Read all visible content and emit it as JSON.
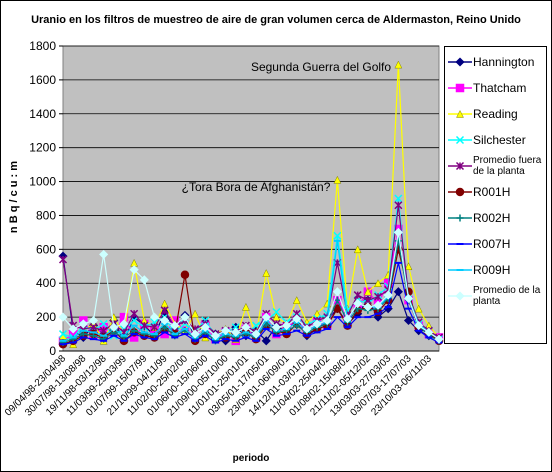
{
  "chart_data": {
    "type": "line",
    "title": "Uranio en los filtros de muestreo de aire de gran volumen cerca de Aldermaston, Reino Unido",
    "x_label": "periodo",
    "y_label": "n B q / c u : m",
    "annotations": [
      "Segunda Guerra del Golfo",
      "¿Tora Bora de Afghanistán?"
    ],
    "categories": [
      "09/04/98-23/04/98",
      null,
      "30/07/98-13/08/98",
      null,
      "19/11/98-03/12/98",
      null,
      "11/03/99-25/03/99",
      null,
      "01/07/99-15/07/99",
      null,
      "21/10/99-04/11/99",
      null,
      "11/02/00-25/02/00",
      null,
      "01/06/00-15/06/00",
      null,
      "21/09/00-05/10/00",
      null,
      "11/01/01-25/01/01",
      null,
      "03/05/01-17/05/01",
      null,
      "23/08/01-06/09/01",
      null,
      "14/12/01-03/01/02",
      null,
      "11/04/02-25/04/02",
      null,
      "01/08/02-15/08/02",
      null,
      "21/11/02-05/12/02",
      null,
      "13/03/03-27/03/03",
      null,
      "03/07/03-17/07/03",
      null,
      "23/10/03-06/11/03",
      null
    ],
    "ylim": [
      0,
      1800
    ],
    "yticks": [
      0,
      200,
      400,
      600,
      800,
      1000,
      1200,
      1400,
      1600,
      1800
    ],
    "grid": true,
    "series": [
      {
        "name": "Hannington",
        "color": "#000080",
        "marker": "diamond",
        "values": [
          560,
          120,
          80,
          150,
          100,
          180,
          60,
          200,
          150,
          90,
          230,
          130,
          210,
          80,
          170,
          100,
          60,
          140,
          90,
          120,
          60,
          150,
          110,
          200,
          90,
          130,
          180,
          250,
          160,
          220,
          300,
          200,
          250,
          350,
          180,
          120,
          90,
          70
        ]
      },
      {
        "name": "Thatcham",
        "color": "#ff00ff",
        "marker": "square",
        "values": [
          60,
          100,
          180,
          90,
          140,
          110,
          200,
          80,
          160,
          130,
          100,
          180,
          120,
          90,
          150,
          70,
          110,
          60,
          130,
          80,
          200,
          100,
          140,
          180,
          120,
          170,
          150,
          300,
          200,
          260,
          350,
          280,
          400,
          720,
          300,
          150,
          100,
          80
        ]
      },
      {
        "name": "Reading",
        "color": "#ffff00",
        "marker": "triangle",
        "values": [
          90,
          40,
          120,
          160,
          60,
          200,
          100,
          520,
          180,
          140,
          280,
          160,
          120,
          220,
          80,
          100,
          130,
          70,
          260,
          90,
          460,
          200,
          160,
          300,
          170,
          220,
          280,
          1010,
          250,
          600,
          350,
          400,
          450,
          1690,
          500,
          250,
          150,
          80
        ]
      },
      {
        "name": "Silchester",
        "color": "#00ffff",
        "marker": "x",
        "values": [
          100,
          80,
          150,
          120,
          160,
          90,
          130,
          180,
          140,
          170,
          200,
          110,
          160,
          120,
          180,
          90,
          110,
          140,
          100,
          150,
          180,
          230,
          170,
          200,
          150,
          190,
          220,
          680,
          240,
          300,
          280,
          330,
          380,
          900,
          320,
          160,
          120,
          70
        ]
      },
      {
        "name": "Promedio fuera de la planta",
        "color": "#800080",
        "marker": "star",
        "values": [
          540,
          150,
          130,
          140,
          120,
          160,
          110,
          220,
          150,
          140,
          240,
          140,
          180,
          130,
          160,
          100,
          120,
          110,
          150,
          110,
          220,
          160,
          150,
          220,
          140,
          180,
          200,
          520,
          210,
          330,
          300,
          320,
          360,
          860,
          330,
          170,
          120,
          80
        ]
      },
      {
        "name": "R001H",
        "color": "#800000",
        "marker": "circle",
        "values": [
          40,
          60,
          90,
          100,
          80,
          120,
          60,
          110,
          90,
          80,
          130,
          100,
          450,
          60,
          100,
          70,
          80,
          90,
          110,
          70,
          150,
          120,
          100,
          160,
          100,
          130,
          150,
          250,
          150,
          240,
          260,
          230,
          300,
          600,
          350,
          140,
          100,
          60
        ]
      },
      {
        "name": "R002H",
        "color": "#008080",
        "marker": "plus",
        "values": [
          50,
          70,
          100,
          90,
          70,
          110,
          80,
          120,
          100,
          90,
          140,
          90,
          120,
          70,
          110,
          60,
          90,
          80,
          100,
          80,
          160,
          110,
          120,
          150,
          110,
          140,
          160,
          300,
          170,
          250,
          240,
          250,
          310,
          650,
          300,
          150,
          90,
          60
        ]
      },
      {
        "name": "R007H",
        "color": "#0000ff",
        "marker": "dash",
        "values": [
          40,
          50,
          80,
          70,
          60,
          90,
          60,
          100,
          80,
          70,
          110,
          80,
          100,
          60,
          90,
          50,
          70,
          60,
          80,
          60,
          130,
          90,
          100,
          120,
          90,
          110,
          130,
          200,
          140,
          200,
          200,
          220,
          260,
          520,
          250,
          120,
          80,
          50
        ]
      },
      {
        "name": "R009H",
        "color": "#00ccff",
        "marker": "dash",
        "values": [
          60,
          80,
          120,
          110,
          90,
          130,
          90,
          150,
          110,
          100,
          160,
          100,
          130,
          80,
          120,
          70,
          100,
          90,
          110,
          90,
          180,
          120,
          130,
          170,
          120,
          150,
          170,
          650,
          180,
          280,
          260,
          260,
          320,
          700,
          320,
          160,
          110,
          70
        ]
      },
      {
        "name": "Promedio de la planta",
        "color": "#ccffff",
        "marker": "diamond",
        "values": [
          200,
          130,
          160,
          180,
          570,
          140,
          160,
          480,
          420,
          200,
          180,
          150,
          200,
          100,
          140,
          90,
          120,
          110,
          140,
          100,
          200,
          140,
          150,
          190,
          130,
          160,
          180,
          350,
          190,
          280,
          260,
          270,
          330,
          700,
          310,
          150,
          110,
          70
        ]
      }
    ]
  }
}
